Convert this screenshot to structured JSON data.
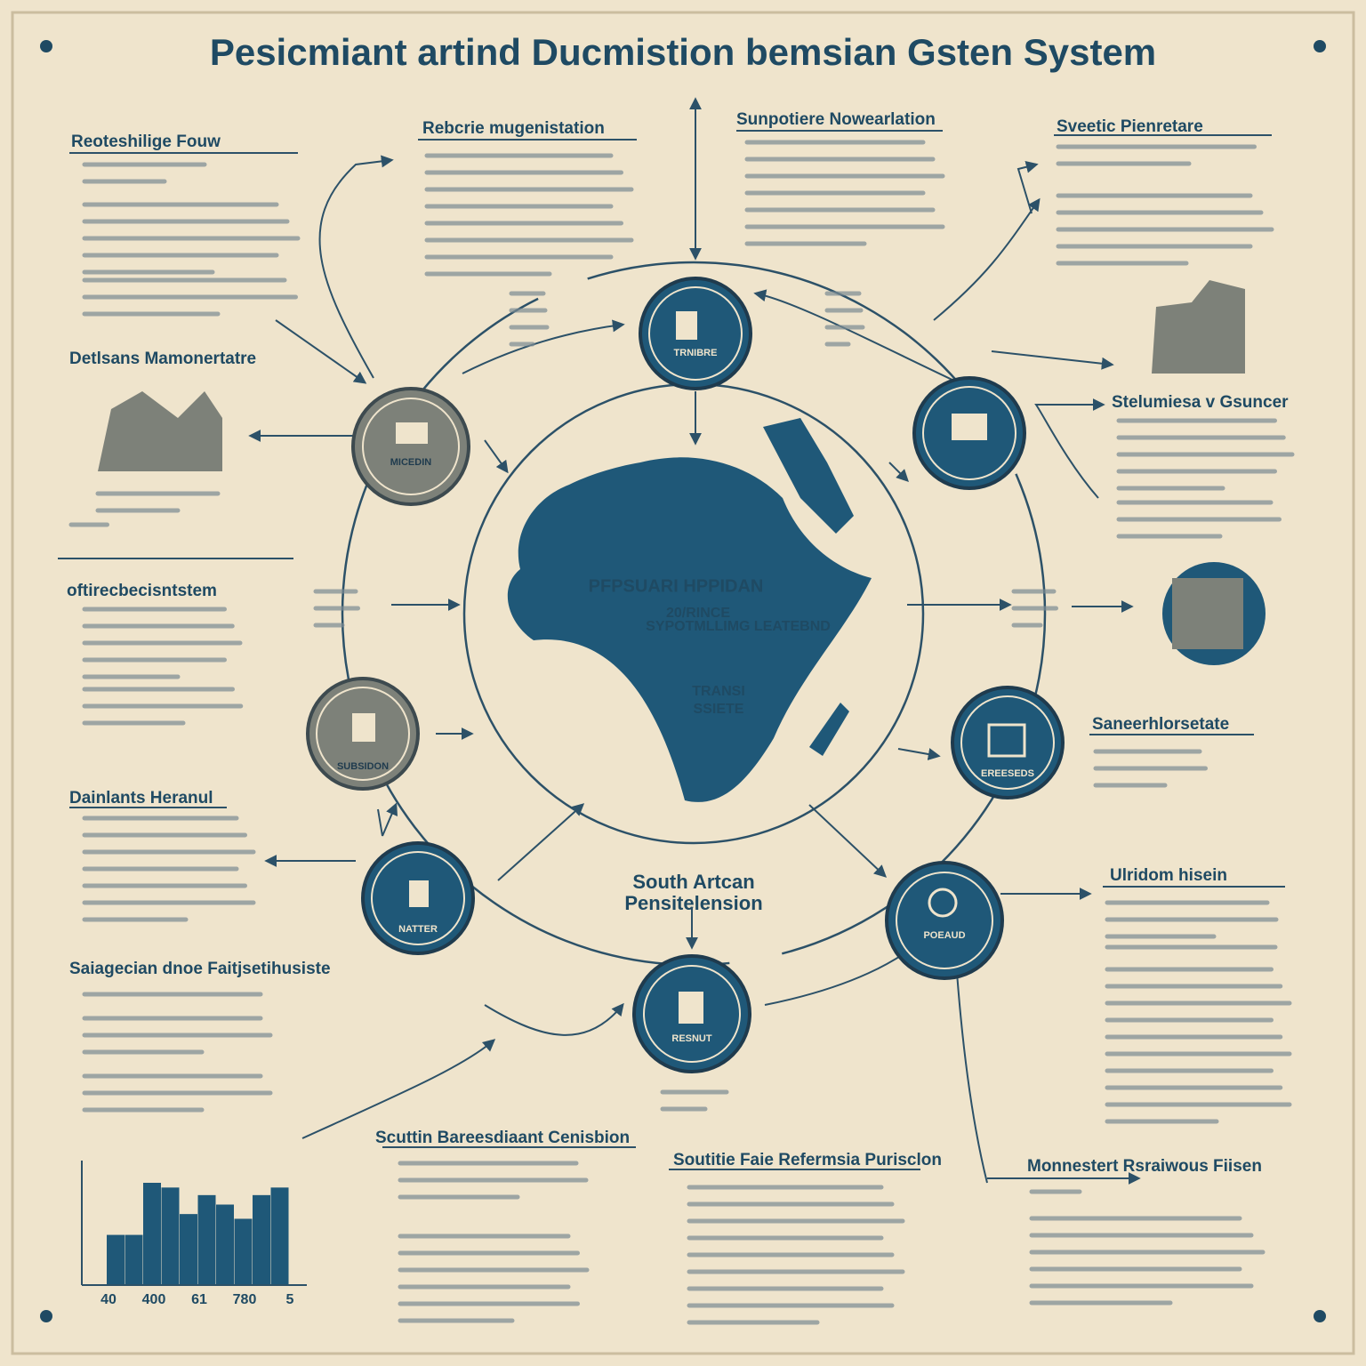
{
  "header": {
    "title": "Pesicmiant artind Ducmistion bemsian Gsten System"
  },
  "sections": [
    {
      "heading": "Rebcrie mugenistation"
    },
    {
      "heading": "Sunpotiere Nowearlation"
    },
    {
      "heading": "Sveetic Pienretare"
    },
    {
      "heading": "Reoteshilige Fouw"
    },
    {
      "heading": "Detlsans Mamonertatre"
    },
    {
      "heading": "Stelumiesa v Gsuncer"
    },
    {
      "heading": "oftirecbecisntstem"
    },
    {
      "heading": "Saneerhlorsetate"
    },
    {
      "heading": "Dainlants Heranul"
    },
    {
      "heading": "Ulridom hisein"
    },
    {
      "heading": "Saiagecian dnoe Faitjsetihusiste"
    },
    {
      "heading": "Scuttin Bareesdiaant Cenisbion"
    },
    {
      "heading": "Soutitie Faie Refermsia Purisclon"
    },
    {
      "heading": "Monnestert Rsraiwous Fiisen"
    }
  ],
  "nodes": [
    {
      "label": "TRNIBRE"
    },
    {
      "label": "MICEDIN"
    },
    {
      "label": "SUBSIDON"
    },
    {
      "label": "NATTER"
    },
    {
      "label": "RESNUT"
    },
    {
      "label": "POEAUD"
    },
    {
      "label": "EREESEDS"
    }
  ],
  "center": {
    "title": "PFPSUARI HPPIDAN",
    "line1": "20/RINCE",
    "line2": "SYPOTMLLIMG LEATEBND",
    "line3": "TRANSI",
    "line4": "SSIETE"
  },
  "lower_center": {
    "line1": "South Artcan",
    "line2": "Pensitelension"
  },
  "bar_chart": {
    "values": [
      53,
      53,
      108,
      103,
      75,
      95,
      85,
      70,
      95,
      103
    ],
    "labels": [
      "40",
      "400",
      "61",
      "780",
      "5"
    ]
  }
}
